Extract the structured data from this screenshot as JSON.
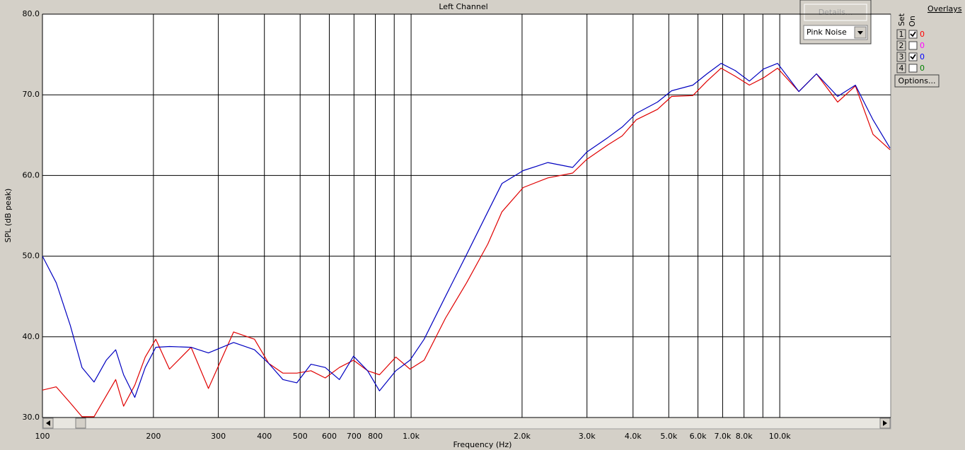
{
  "chart_data": {
    "type": "line",
    "title": "Left Channel",
    "xlabel": "Frequency (Hz)",
    "ylabel": "SPL (dB peak)",
    "xscale": "log",
    "grid": true,
    "x": [
      100,
      109,
      119,
      128,
      138,
      149,
      158,
      166,
      178,
      190,
      203,
      221,
      253,
      282,
      330,
      376,
      411,
      449,
      490,
      535,
      585,
      639,
      698,
      762,
      821,
      909,
      993,
      1085,
      1239,
      1414,
      1615,
      1764,
      2014,
      2350,
      2743,
      2996,
      3420,
      3737,
      4081,
      4660,
      5090,
      5810,
      6347,
      6931,
      7572,
      8270,
      9035,
      9867,
      11270,
      12580,
      14360,
      16040,
      17910,
      19910
    ],
    "series": [
      {
        "color": "#e00000",
        "values": [
          33.4,
          33.8,
          31.8,
          30.1,
          30.1,
          32.7,
          34.7,
          31.4,
          34.0,
          37.5,
          39.7,
          36.0,
          38.7,
          33.6,
          40.6,
          39.7,
          36.7,
          35.5,
          35.5,
          35.8,
          34.9,
          36.2,
          37.1,
          35.8,
          35.3,
          37.5,
          36.0,
          37.1,
          42.3,
          46.7,
          51.5,
          55.5,
          58.5,
          59.7,
          60.3,
          62.0,
          63.8,
          64.9,
          66.9,
          68.2,
          69.8,
          69.9,
          71.7,
          73.3,
          72.3,
          71.2,
          72.1,
          73.3,
          70.4,
          72.6,
          69.1,
          71.1,
          65.1,
          63.2
        ]
      },
      {
        "color": "#0000c0",
        "values": [
          50.0,
          46.7,
          41.4,
          36.2,
          34.4,
          37.1,
          38.4,
          35.3,
          32.5,
          36.2,
          38.7,
          38.8,
          38.7,
          38.0,
          39.3,
          38.4,
          36.7,
          34.7,
          34.3,
          36.6,
          36.2,
          34.7,
          37.6,
          35.8,
          33.3,
          35.8,
          37.1,
          39.7,
          45.0,
          50.2,
          55.5,
          59.0,
          60.6,
          61.6,
          61.0,
          62.9,
          64.7,
          66.0,
          67.7,
          69.1,
          70.5,
          71.2,
          72.6,
          73.9,
          73.0,
          71.7,
          73.2,
          73.9,
          70.4,
          72.6,
          69.8,
          71.2,
          66.9,
          63.4
        ]
      }
    ],
    "xlim": [
      100,
      20000
    ],
    "xticks": [
      100,
      200,
      300,
      400,
      500,
      600,
      700,
      800,
      {
        "value": 1000,
        "label": "1.0k"
      },
      {
        "value": 2000,
        "label": "2.0k"
      },
      {
        "value": 3000,
        "label": "3.0k"
      },
      {
        "value": 4000,
        "label": "4.0k"
      },
      {
        "value": 5000,
        "label": "5.0k"
      },
      {
        "value": 6000,
        "label": "6.0k"
      },
      {
        "value": 7000,
        "label": "7.0k"
      },
      {
        "value": 8000,
        "label": "8.0k"
      },
      {
        "value": 10000,
        "label": "10.0k"
      }
    ],
    "x_minor_ticks": [
      900,
      9000
    ],
    "ylim": [
      30,
      80
    ],
    "yticks": [
      {
        "value": 30,
        "label": "30.0"
      },
      {
        "value": 40,
        "label": "40.0"
      },
      {
        "value": 50,
        "label": "50.0"
      },
      {
        "value": 60,
        "label": "60.0"
      },
      {
        "value": 70,
        "label": "70.0"
      },
      {
        "value": 80,
        "label": "80.0"
      }
    ]
  },
  "panel": {
    "details_button": "Details...",
    "source": "Pink Noise",
    "set_label": "Set",
    "on_label": "On",
    "overlays_label": "Overlays",
    "overlays": [
      {
        "set": "1",
        "checked": true,
        "value": "0",
        "color": "#ff0000"
      },
      {
        "set": "2",
        "checked": false,
        "value": "0",
        "color": "#ff00ff"
      },
      {
        "set": "3",
        "checked": true,
        "value": "0",
        "color": "#0000ff"
      },
      {
        "set": "4",
        "checked": false,
        "value": "0",
        "color": "#008000"
      }
    ],
    "options_button": "Options..."
  }
}
